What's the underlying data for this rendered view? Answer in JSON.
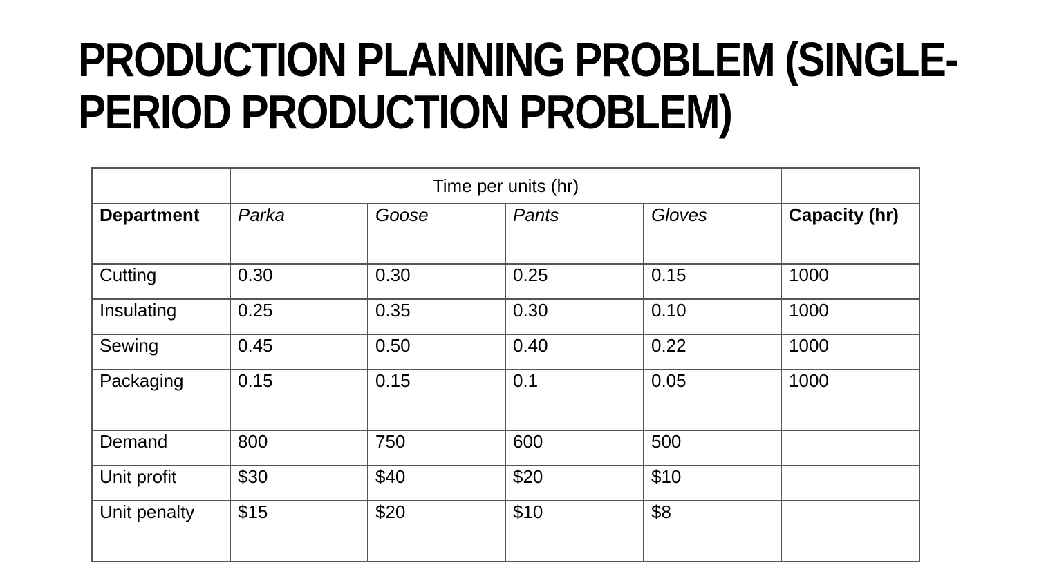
{
  "title": {
    "line1": "PRODUCTION PLANNING PROBLEM (SINGLE-",
    "line2": "PERIOD PRODUCTION PROBLEM)"
  },
  "table": {
    "group_header": "Time per units (hr)",
    "headers": {
      "department": "Department",
      "products": [
        "Parka",
        "Goose",
        "Pants",
        "Gloves"
      ],
      "capacity": "Capacity (hr)"
    },
    "rows": [
      {
        "label": "Cutting",
        "values": [
          "0.30",
          "0.30",
          "0.25",
          "0.15"
        ],
        "capacity": "1000"
      },
      {
        "label": "Insulating",
        "values": [
          "0.25",
          "0.35",
          "0.30",
          "0.10"
        ],
        "capacity": "1000"
      },
      {
        "label": "Sewing",
        "values": [
          "0.45",
          "0.50",
          "0.40",
          "0.22"
        ],
        "capacity": "1000"
      },
      {
        "label": "Packaging",
        "values": [
          "0.15",
          "0.15",
          "0.1",
          "0.05"
        ],
        "capacity": "1000"
      }
    ],
    "summary_rows": [
      {
        "label": "Demand",
        "values": [
          "800",
          "750",
          "600",
          "500"
        ]
      },
      {
        "label": "Unit profit",
        "values": [
          "$30",
          "$40",
          "$20",
          "$10"
        ]
      },
      {
        "label": "Unit penalty",
        "values": [
          "$15",
          "$20",
          "$10",
          "$8"
        ]
      }
    ]
  }
}
